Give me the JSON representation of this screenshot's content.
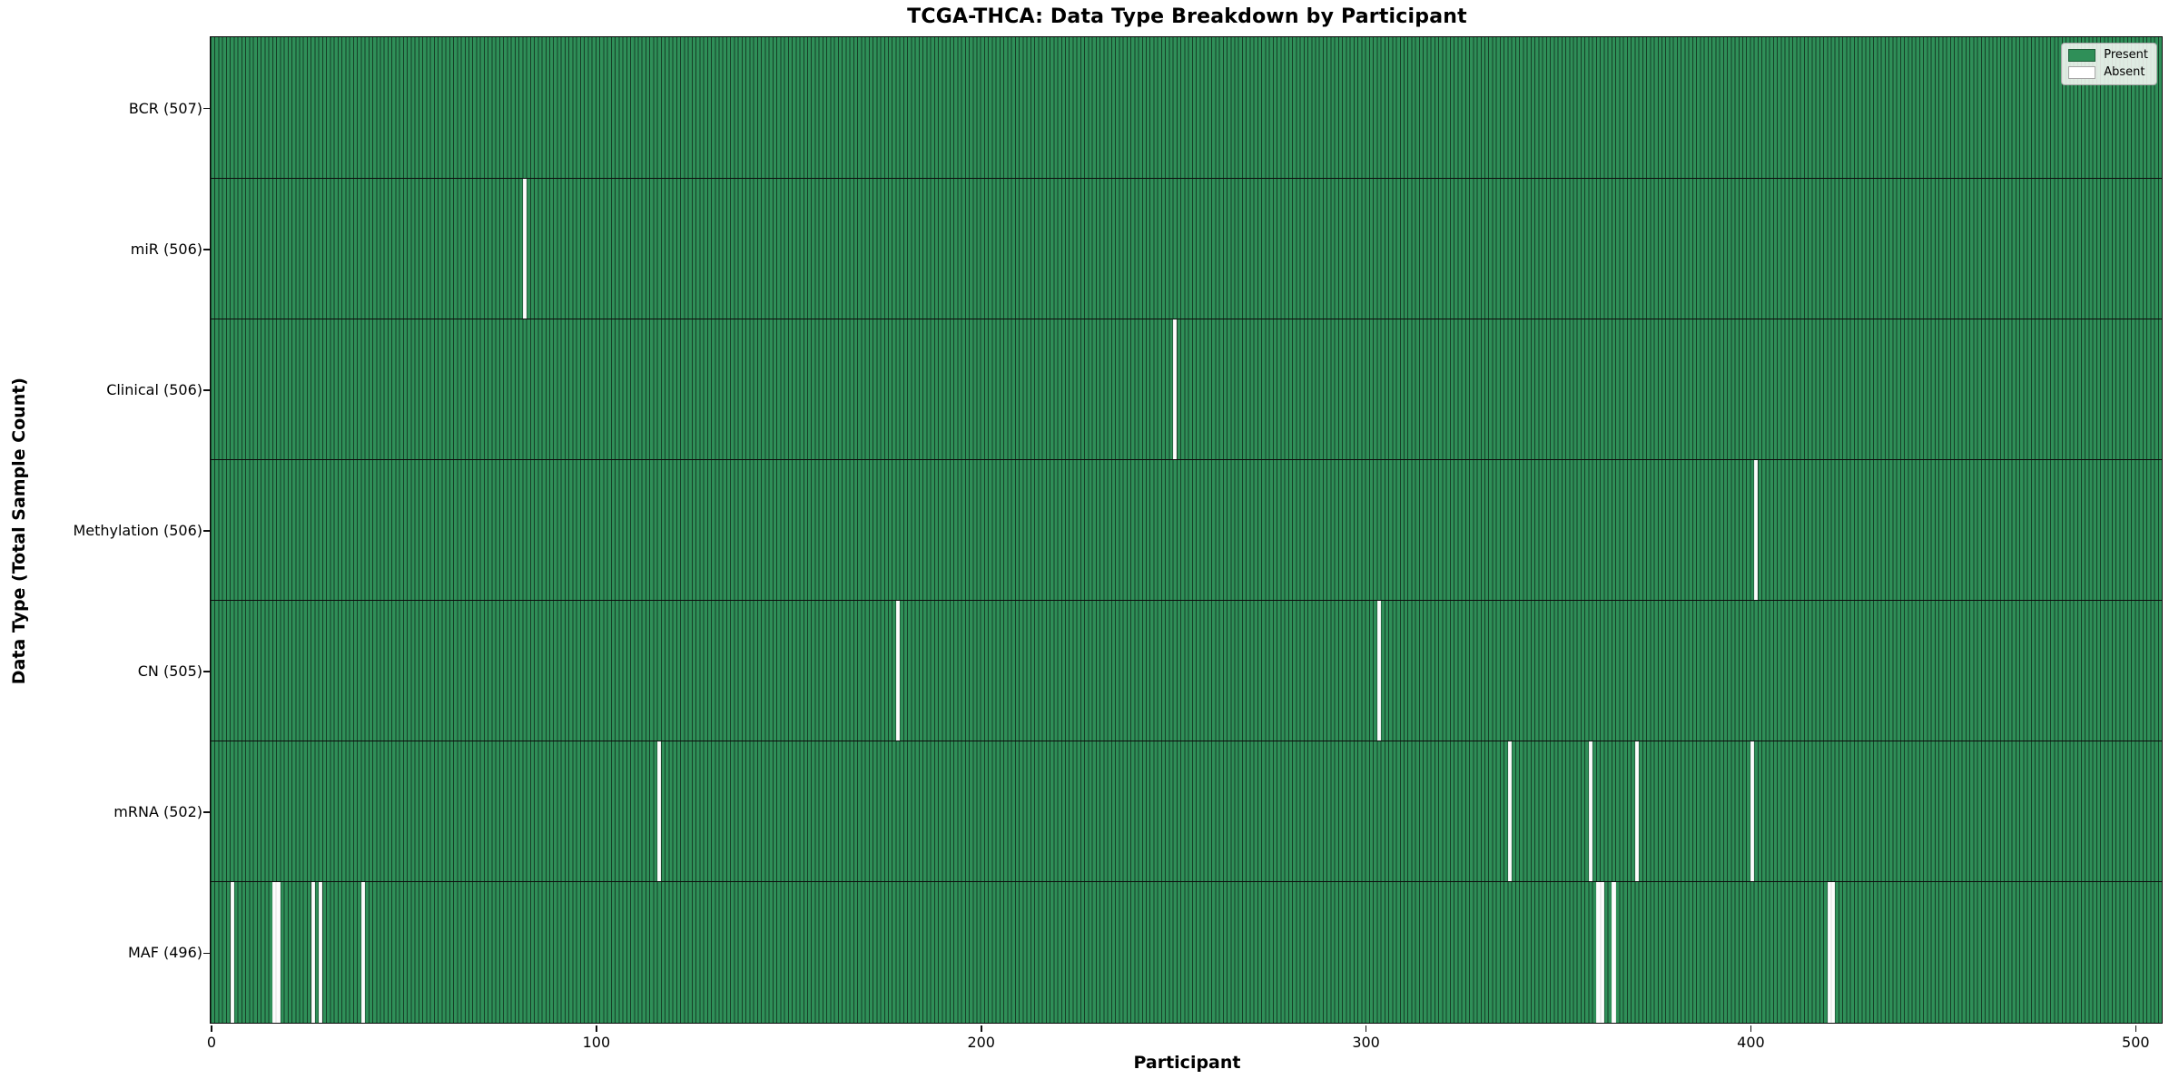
{
  "chart_data": {
    "type": "heatmap",
    "title": "TCGA-THCA: Data Type Breakdown by Participant",
    "xlabel": "Participant",
    "ylabel": "Data Type (Total Sample Count)",
    "n_participants": 507,
    "x_ticks": [
      0,
      100,
      200,
      300,
      400,
      500
    ],
    "x_range": [
      0,
      507
    ],
    "grid": false,
    "legend_position": "upper right",
    "legend": [
      {
        "label": "Present",
        "color": "#2f8f58"
      },
      {
        "label": "Absent",
        "color": "#ffffff"
      }
    ],
    "rows": [
      {
        "label": "BCR (507)",
        "name": "bcr",
        "total": 507,
        "absent": []
      },
      {
        "label": "miR (506)",
        "name": "mir",
        "total": 506,
        "absent": [
          81
        ]
      },
      {
        "label": "Clinical (506)",
        "name": "clinical",
        "total": 506,
        "absent": [
          250
        ]
      },
      {
        "label": "Methylation (506)",
        "name": "methylation",
        "total": 506,
        "absent": [
          401
        ]
      },
      {
        "label": "CN (505)",
        "name": "cn",
        "total": 505,
        "absent": [
          178,
          303
        ]
      },
      {
        "label": "mRNA (502)",
        "name": "mrna",
        "total": 502,
        "absent": [
          116,
          337,
          358,
          370,
          400
        ]
      },
      {
        "label": "MAF (496)",
        "name": "maf",
        "total": 496,
        "absent": [
          5,
          16,
          17,
          26,
          28,
          39,
          360,
          361,
          364,
          420,
          421
        ]
      }
    ],
    "colors": {
      "present": "#2f8f58",
      "absent": "#fdfdfd",
      "bar_edge": "#163f27",
      "row_separator": "#0d0d0d",
      "spine": "#0a0a0a"
    }
  }
}
